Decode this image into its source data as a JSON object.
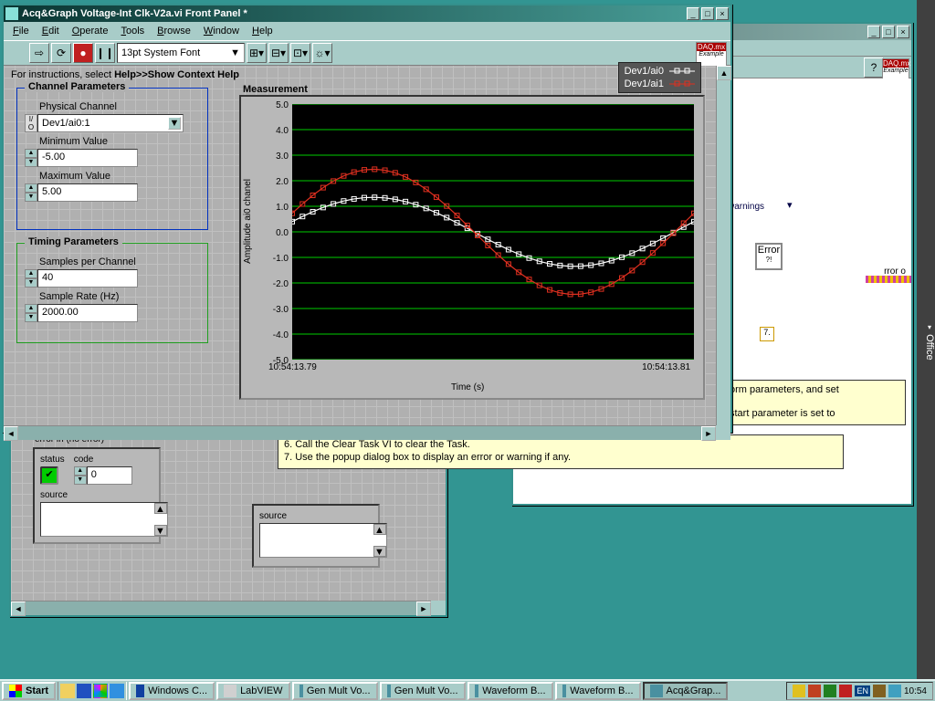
{
  "desktop": {
    "bg": "#329592"
  },
  "office_sidebar": {
    "label": "Office"
  },
  "bg_window": {
    "warnings_label": "warnings",
    "error_node": "Error",
    "seven": "7.",
    "note_lines": [
      "orm parameters, and set",
      "start parameter is set to"
    ],
    "yellow2": [
      "6. Call the Clear Task VI to clear the Task.",
      "7. Use the popup dialog box to display an error or warning if any."
    ]
  },
  "main": {
    "title": "Acq&Graph Voltage-Int Clk-V2a.vi Front Panel *",
    "menus": [
      "File",
      "Edit",
      "Operate",
      "Tools",
      "Browse",
      "Window",
      "Help"
    ],
    "font_selector": "13pt System Font",
    "toolbar_icons": [
      "run",
      "run-cont",
      "abort",
      "pause"
    ],
    "daq": {
      "title": "DAQ.mx",
      "sub": "Example"
    },
    "instruction_pre": "For instructions, select ",
    "instruction_bold": "Help>>Show Context Help",
    "channel_params": {
      "legend": "Channel Parameters",
      "physical_channel_label": "Physical Channel",
      "physical_channel_value": "Dev1/ai0:1",
      "min_label": "Minimum Value",
      "min_value": "-5.00",
      "max_label": "Maximum Value",
      "max_value": "5.00"
    },
    "timing_params": {
      "legend": "Timing Parameters",
      "samples_label": "Samples per Channel",
      "samples_value": "40",
      "rate_label": "Sample Rate (Hz)",
      "rate_value": "2000.00"
    },
    "chart": {
      "title": "Measurement",
      "ylabel": "Amplitude ai0 chanel",
      "xlabel": "Time (s)",
      "yticks": [
        "5.0",
        "4.0",
        "3.0",
        "2.0",
        "1.0",
        "0.0",
        "-1.0",
        "-2.0",
        "-3.0",
        "-4.0",
        "-5.0"
      ],
      "xticks": [
        "10:54:13.79",
        "10:54:13.81"
      ],
      "legend": [
        {
          "label": "Dev1/ai0",
          "color": "#ffffff"
        },
        {
          "label": "Dev1/ai1",
          "color": "#e03020"
        }
      ],
      "grid_color": "#00c000",
      "plot_bg": "#000000",
      "ylim": [
        -5,
        5
      ],
      "series": [
        {
          "color": "#ffffff",
          "amp": 1.35,
          "phase": 0.3,
          "n": 40
        },
        {
          "color": "#e03020",
          "amp": 2.45,
          "phase": 0.3,
          "n": 40
        }
      ]
    },
    "error_in": {
      "title": "error in (no error)",
      "status": "status",
      "code": "code",
      "code_value": "0",
      "source": "source"
    },
    "error_out": {
      "source": "source"
    }
  },
  "taskbar": {
    "start": "Start",
    "buttons": [
      {
        "label": "Windows C...",
        "icon": "#1040a0",
        "active": false
      },
      {
        "label": "LabVIEW",
        "icon": "#d0d0d0",
        "active": false
      },
      {
        "label": "Gen Mult Vo...",
        "icon": "#4a90a0",
        "active": false
      },
      {
        "label": "Gen Mult Vo...",
        "icon": "#4a90a0",
        "active": false
      },
      {
        "label": "Waveform B...",
        "icon": "#4a90a0",
        "active": false
      },
      {
        "label": "Waveform B...",
        "icon": "#4a90a0",
        "active": false
      },
      {
        "label": "Acq&Grap...",
        "icon": "#4a90a0",
        "active": true
      }
    ],
    "lang": "EN",
    "clock": "10:54"
  }
}
